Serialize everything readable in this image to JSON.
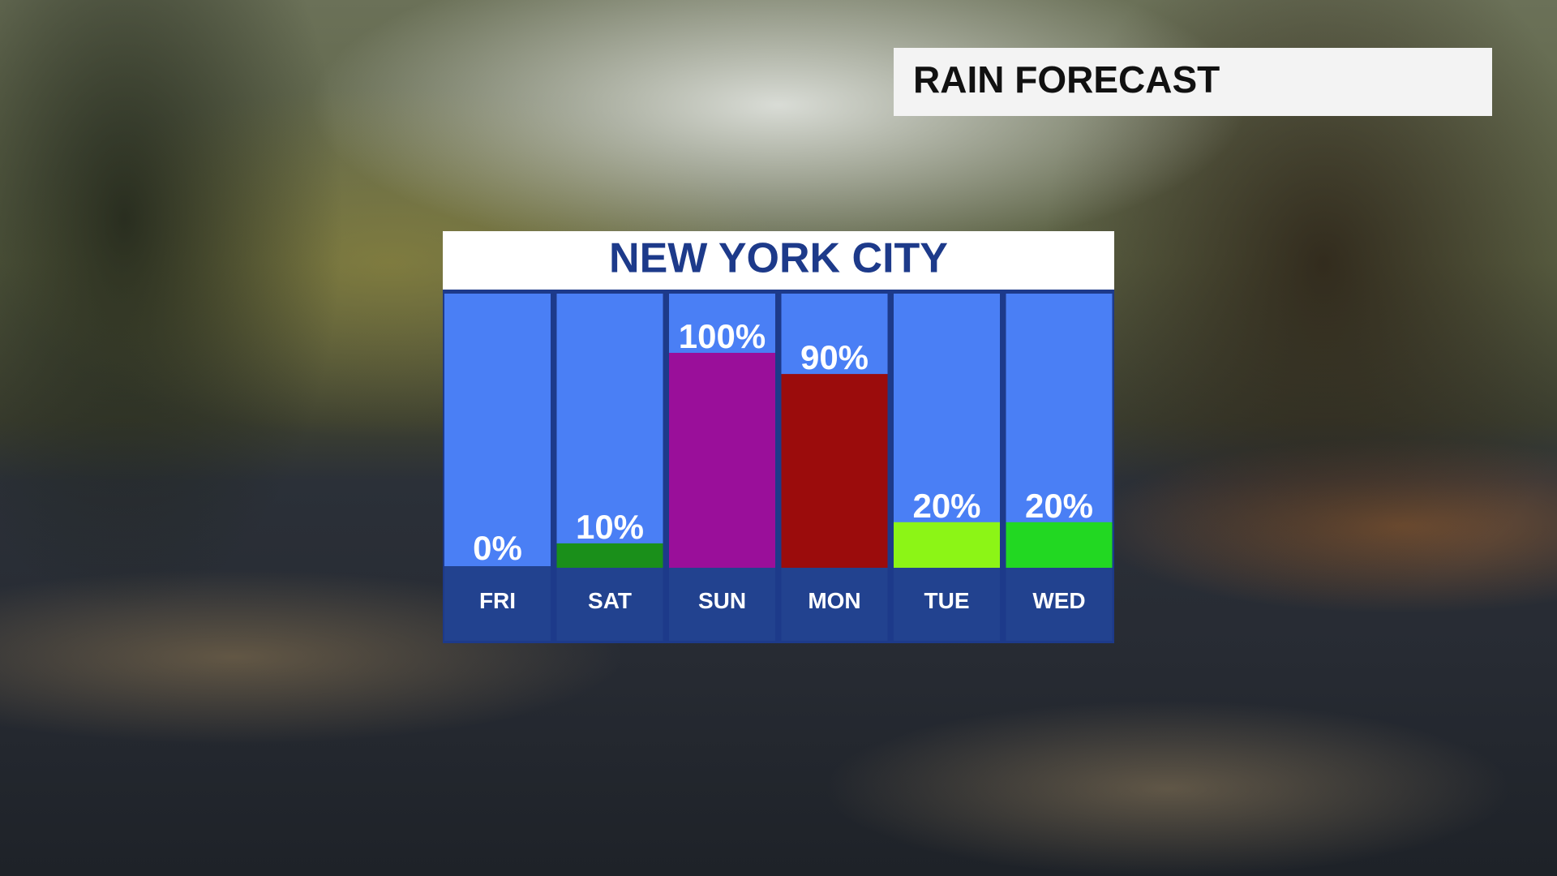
{
  "header": "RAIN FORECAST",
  "chart_data": {
    "type": "bar",
    "title": "NEW YORK CITY",
    "categories": [
      "FRI",
      "SAT",
      "SUN",
      "MON",
      "TUE",
      "WED"
    ],
    "values": [
      0,
      10,
      100,
      90,
      20,
      20
    ],
    "value_labels": [
      "0%",
      "10%",
      "100%",
      "90%",
      "20%",
      "20%"
    ],
    "colors": [
      "#ffffff",
      "#1a8f1a",
      "#9a0f9a",
      "#9b0c0c",
      "#8cf516",
      "#22d822"
    ],
    "ylim": [
      0,
      100
    ]
  }
}
